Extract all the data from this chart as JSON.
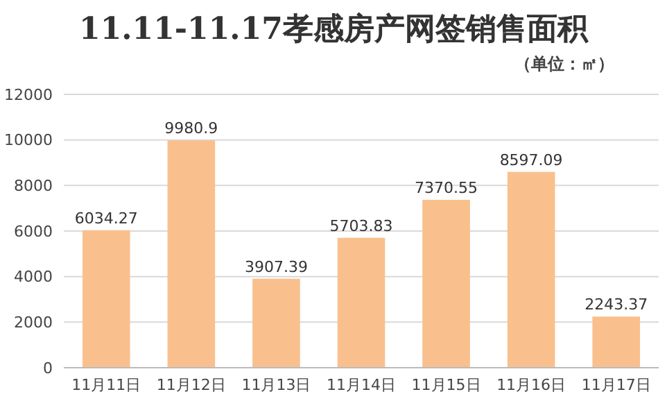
{
  "chart_data": {
    "type": "bar",
    "title": "11.11-11.17孝感房产网签销售面积",
    "subtitle": "（单位：㎡）",
    "categories": [
      "11月11日",
      "11月12日",
      "11月13日",
      "11月14日",
      "11月15日",
      "11月16日",
      "11月17日"
    ],
    "values": [
      6034.27,
      9980.9,
      3907.39,
      5703.83,
      7370.55,
      8597.09,
      2243.37
    ],
    "color": "#f9c08e",
    "ylim": [
      0,
      12000
    ],
    "yticks": [
      0,
      2000,
      4000,
      6000,
      8000,
      10000,
      12000
    ],
    "grid": "y",
    "data_labels": true,
    "legend": false
  }
}
